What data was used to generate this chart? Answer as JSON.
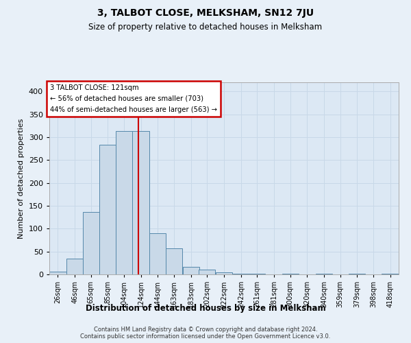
{
  "title": "3, TALBOT CLOSE, MELKSHAM, SN12 7JU",
  "subtitle": "Size of property relative to detached houses in Melksham",
  "xlabel": "Distribution of detached houses by size in Melksham",
  "ylabel": "Number of detached properties",
  "footer_line1": "Contains HM Land Registry data © Crown copyright and database right 2024.",
  "footer_line2": "Contains public sector information licensed under the Open Government Licence v3.0.",
  "bar_labels": [
    "26sqm",
    "46sqm",
    "65sqm",
    "85sqm",
    "104sqm",
    "124sqm",
    "144sqm",
    "163sqm",
    "183sqm",
    "202sqm",
    "222sqm",
    "242sqm",
    "261sqm",
    "281sqm",
    "300sqm",
    "320sqm",
    "340sqm",
    "359sqm",
    "379sqm",
    "398sqm",
    "418sqm"
  ],
  "bar_values": [
    6,
    35,
    136,
    284,
    313,
    314,
    90,
    57,
    17,
    10,
    4,
    2,
    1,
    0,
    2,
    0,
    1,
    0,
    1,
    0,
    2
  ],
  "bar_color": "#c9d9e8",
  "bar_edge_color": "#5588aa",
  "vline_color": "#cc0000",
  "annotation_title": "3 TALBOT CLOSE: 121sqm",
  "annotation_line1": "← 56% of detached houses are smaller (703)",
  "annotation_line2": "44% of semi-detached houses are larger (563) →",
  "annotation_box_edge_color": "#cc0000",
  "annotation_text_color": "#000000",
  "ylim": [
    0,
    420
  ],
  "yticks": [
    0,
    50,
    100,
    150,
    200,
    250,
    300,
    350,
    400
  ],
  "grid_color": "#c8d8e8",
  "bg_color": "#e8f0f8",
  "plot_bg_color": "#dce8f4",
  "property_size": 121,
  "centers": [
    26,
    46,
    65,
    85,
    104,
    124,
    144,
    163,
    183,
    202,
    222,
    242,
    261,
    281,
    300,
    320,
    340,
    359,
    379,
    398,
    418
  ]
}
